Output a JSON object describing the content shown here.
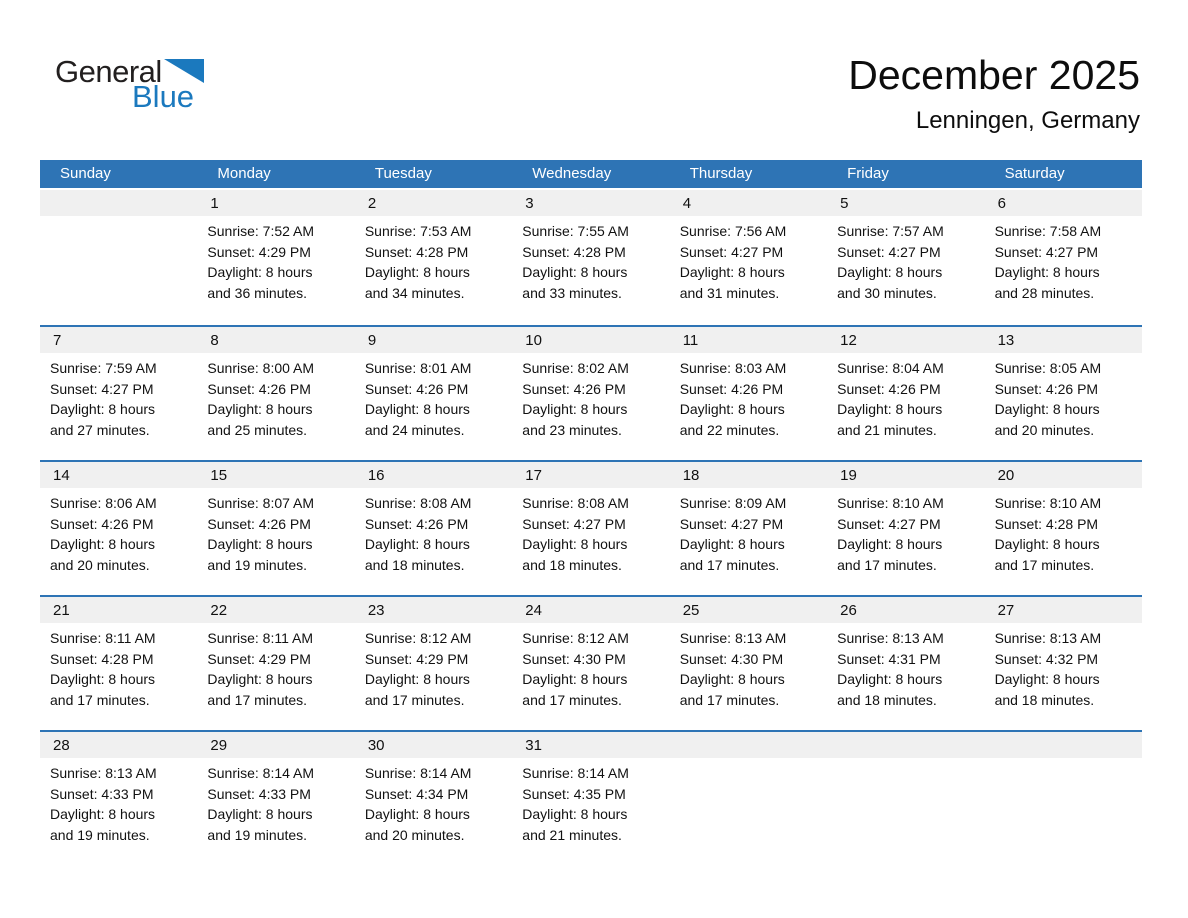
{
  "logo": {
    "text_primary": "General",
    "text_secondary": "Blue",
    "triangle_icon": "blue-right-triangle"
  },
  "header": {
    "title": "December 2025",
    "location": "Lenningen, Germany"
  },
  "weekday_headers": [
    "Sunday",
    "Monday",
    "Tuesday",
    "Wednesday",
    "Thursday",
    "Friday",
    "Saturday"
  ],
  "colors": {
    "header_bar_blue": "#2E74B5",
    "week_divider_blue": "#2E74B5",
    "day_number_band_gray": "#F0F0F0",
    "logo_blue": "#1B79BE",
    "text": "#111111"
  },
  "weeks": [
    [
      {
        "day": ""
      },
      {
        "day": "1",
        "sunrise": "Sunrise: 7:52 AM",
        "sunset": "Sunset: 4:29 PM",
        "daylight_line1": "Daylight: 8 hours",
        "daylight_line2": "and 36 minutes."
      },
      {
        "day": "2",
        "sunrise": "Sunrise: 7:53 AM",
        "sunset": "Sunset: 4:28 PM",
        "daylight_line1": "Daylight: 8 hours",
        "daylight_line2": "and 34 minutes."
      },
      {
        "day": "3",
        "sunrise": "Sunrise: 7:55 AM",
        "sunset": "Sunset: 4:28 PM",
        "daylight_line1": "Daylight: 8 hours",
        "daylight_line2": "and 33 minutes."
      },
      {
        "day": "4",
        "sunrise": "Sunrise: 7:56 AM",
        "sunset": "Sunset: 4:27 PM",
        "daylight_line1": "Daylight: 8 hours",
        "daylight_line2": "and 31 minutes."
      },
      {
        "day": "5",
        "sunrise": "Sunrise: 7:57 AM",
        "sunset": "Sunset: 4:27 PM",
        "daylight_line1": "Daylight: 8 hours",
        "daylight_line2": "and 30 minutes."
      },
      {
        "day": "6",
        "sunrise": "Sunrise: 7:58 AM",
        "sunset": "Sunset: 4:27 PM",
        "daylight_line1": "Daylight: 8 hours",
        "daylight_line2": "and 28 minutes."
      }
    ],
    [
      {
        "day": "7",
        "sunrise": "Sunrise: 7:59 AM",
        "sunset": "Sunset: 4:27 PM",
        "daylight_line1": "Daylight: 8 hours",
        "daylight_line2": "and 27 minutes."
      },
      {
        "day": "8",
        "sunrise": "Sunrise: 8:00 AM",
        "sunset": "Sunset: 4:26 PM",
        "daylight_line1": "Daylight: 8 hours",
        "daylight_line2": "and 25 minutes."
      },
      {
        "day": "9",
        "sunrise": "Sunrise: 8:01 AM",
        "sunset": "Sunset: 4:26 PM",
        "daylight_line1": "Daylight: 8 hours",
        "daylight_line2": "and 24 minutes."
      },
      {
        "day": "10",
        "sunrise": "Sunrise: 8:02 AM",
        "sunset": "Sunset: 4:26 PM",
        "daylight_line1": "Daylight: 8 hours",
        "daylight_line2": "and 23 minutes."
      },
      {
        "day": "11",
        "sunrise": "Sunrise: 8:03 AM",
        "sunset": "Sunset: 4:26 PM",
        "daylight_line1": "Daylight: 8 hours",
        "daylight_line2": "and 22 minutes."
      },
      {
        "day": "12",
        "sunrise": "Sunrise: 8:04 AM",
        "sunset": "Sunset: 4:26 PM",
        "daylight_line1": "Daylight: 8 hours",
        "daylight_line2": "and 21 minutes."
      },
      {
        "day": "13",
        "sunrise": "Sunrise: 8:05 AM",
        "sunset": "Sunset: 4:26 PM",
        "daylight_line1": "Daylight: 8 hours",
        "daylight_line2": "and 20 minutes."
      }
    ],
    [
      {
        "day": "14",
        "sunrise": "Sunrise: 8:06 AM",
        "sunset": "Sunset: 4:26 PM",
        "daylight_line1": "Daylight: 8 hours",
        "daylight_line2": "and 20 minutes."
      },
      {
        "day": "15",
        "sunrise": "Sunrise: 8:07 AM",
        "sunset": "Sunset: 4:26 PM",
        "daylight_line1": "Daylight: 8 hours",
        "daylight_line2": "and 19 minutes."
      },
      {
        "day": "16",
        "sunrise": "Sunrise: 8:08 AM",
        "sunset": "Sunset: 4:26 PM",
        "daylight_line1": "Daylight: 8 hours",
        "daylight_line2": "and 18 minutes."
      },
      {
        "day": "17",
        "sunrise": "Sunrise: 8:08 AM",
        "sunset": "Sunset: 4:27 PM",
        "daylight_line1": "Daylight: 8 hours",
        "daylight_line2": "and 18 minutes."
      },
      {
        "day": "18",
        "sunrise": "Sunrise: 8:09 AM",
        "sunset": "Sunset: 4:27 PM",
        "daylight_line1": "Daylight: 8 hours",
        "daylight_line2": "and 17 minutes."
      },
      {
        "day": "19",
        "sunrise": "Sunrise: 8:10 AM",
        "sunset": "Sunset: 4:27 PM",
        "daylight_line1": "Daylight: 8 hours",
        "daylight_line2": "and 17 minutes."
      },
      {
        "day": "20",
        "sunrise": "Sunrise: 8:10 AM",
        "sunset": "Sunset: 4:28 PM",
        "daylight_line1": "Daylight: 8 hours",
        "daylight_line2": "and 17 minutes."
      }
    ],
    [
      {
        "day": "21",
        "sunrise": "Sunrise: 8:11 AM",
        "sunset": "Sunset: 4:28 PM",
        "daylight_line1": "Daylight: 8 hours",
        "daylight_line2": "and 17 minutes."
      },
      {
        "day": "22",
        "sunrise": "Sunrise: 8:11 AM",
        "sunset": "Sunset: 4:29 PM",
        "daylight_line1": "Daylight: 8 hours",
        "daylight_line2": "and 17 minutes."
      },
      {
        "day": "23",
        "sunrise": "Sunrise: 8:12 AM",
        "sunset": "Sunset: 4:29 PM",
        "daylight_line1": "Daylight: 8 hours",
        "daylight_line2": "and 17 minutes."
      },
      {
        "day": "24",
        "sunrise": "Sunrise: 8:12 AM",
        "sunset": "Sunset: 4:30 PM",
        "daylight_line1": "Daylight: 8 hours",
        "daylight_line2": "and 17 minutes."
      },
      {
        "day": "25",
        "sunrise": "Sunrise: 8:13 AM",
        "sunset": "Sunset: 4:30 PM",
        "daylight_line1": "Daylight: 8 hours",
        "daylight_line2": "and 17 minutes."
      },
      {
        "day": "26",
        "sunrise": "Sunrise: 8:13 AM",
        "sunset": "Sunset: 4:31 PM",
        "daylight_line1": "Daylight: 8 hours",
        "daylight_line2": "and 18 minutes."
      },
      {
        "day": "27",
        "sunrise": "Sunrise: 8:13 AM",
        "sunset": "Sunset: 4:32 PM",
        "daylight_line1": "Daylight: 8 hours",
        "daylight_line2": "and 18 minutes."
      }
    ],
    [
      {
        "day": "28",
        "sunrise": "Sunrise: 8:13 AM",
        "sunset": "Sunset: 4:33 PM",
        "daylight_line1": "Daylight: 8 hours",
        "daylight_line2": "and 19 minutes."
      },
      {
        "day": "29",
        "sunrise": "Sunrise: 8:14 AM",
        "sunset": "Sunset: 4:33 PM",
        "daylight_line1": "Daylight: 8 hours",
        "daylight_line2": "and 19 minutes."
      },
      {
        "day": "30",
        "sunrise": "Sunrise: 8:14 AM",
        "sunset": "Sunset: 4:34 PM",
        "daylight_line1": "Daylight: 8 hours",
        "daylight_line2": "and 20 minutes."
      },
      {
        "day": "31",
        "sunrise": "Sunrise: 8:14 AM",
        "sunset": "Sunset: 4:35 PM",
        "daylight_line1": "Daylight: 8 hours",
        "daylight_line2": "and 21 minutes."
      },
      {
        "day": ""
      },
      {
        "day": ""
      },
      {
        "day": ""
      }
    ]
  ]
}
